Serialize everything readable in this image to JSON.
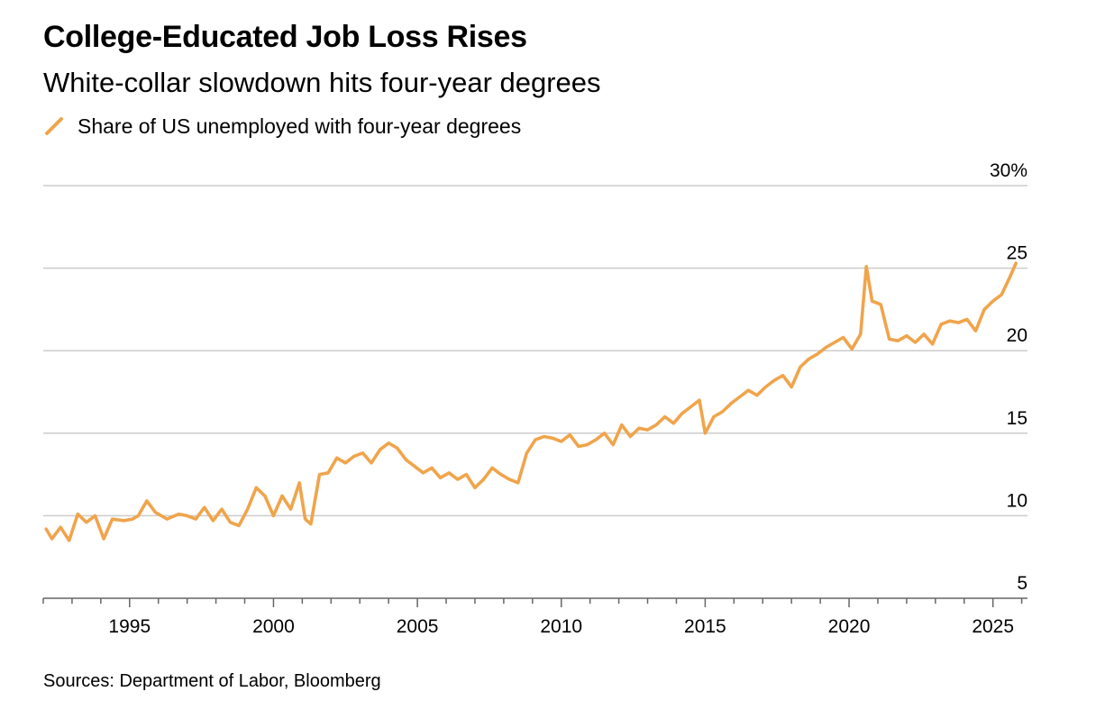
{
  "header": {
    "title": "College-Educated Job Loss Rises",
    "subtitle": "White-collar slowdown hits four-year degrees"
  },
  "footer": {
    "source": "Sources: Department of Labor, Bloomberg"
  },
  "colors": {
    "series": "#F0A44B",
    "grid": "#cccccc",
    "axis": "#666666",
    "text": "#000000"
  },
  "chart_data": {
    "type": "line",
    "title": "College-Educated Job Loss Rises",
    "subtitle": "White-collar slowdown hits four-year degrees",
    "xlabel": "",
    "ylabel": "",
    "xlim": [
      1992.0,
      2026.2
    ],
    "ylim": [
      5,
      30
    ],
    "y_ticks": [
      5,
      10,
      15,
      20,
      25,
      30
    ],
    "y_tick_labels": [
      "5",
      "10",
      "15",
      "20",
      "25",
      "30%"
    ],
    "x_ticks": [
      1995,
      2000,
      2005,
      2010,
      2015,
      2020,
      2025
    ],
    "x_tick_labels": [
      "1995",
      "2000",
      "2005",
      "2010",
      "2015",
      "2020",
      "2025"
    ],
    "grid": "horizontal",
    "legend_position": "top-left",
    "series": [
      {
        "name": "Share of US unemployed with four-year degrees",
        "color": "#F0A44B",
        "x": [
          1992.1,
          1992.3,
          1992.6,
          1992.9,
          1993.2,
          1993.5,
          1993.8,
          1994.1,
          1994.4,
          1994.8,
          1995.1,
          1995.3,
          1995.6,
          1995.9,
          1996.3,
          1996.7,
          1997.0,
          1997.3,
          1997.6,
          1997.9,
          1998.2,
          1998.5,
          1998.8,
          1999.1,
          1999.4,
          1999.7,
          2000.0,
          2000.3,
          2000.6,
          2000.9,
          2001.1,
          2001.3,
          2001.6,
          2001.9,
          2002.2,
          2002.5,
          2002.8,
          2003.1,
          2003.4,
          2003.7,
          2004.0,
          2004.3,
          2004.6,
          2004.9,
          2005.2,
          2005.5,
          2005.8,
          2006.1,
          2006.4,
          2006.7,
          2007.0,
          2007.3,
          2007.6,
          2007.9,
          2008.2,
          2008.5,
          2008.8,
          2009.1,
          2009.4,
          2009.7,
          2010.0,
          2010.3,
          2010.6,
          2010.9,
          2011.2,
          2011.5,
          2011.8,
          2012.1,
          2012.4,
          2012.7,
          2013.0,
          2013.3,
          2013.6,
          2013.9,
          2014.2,
          2014.5,
          2014.8,
          2015.0,
          2015.3,
          2015.6,
          2015.9,
          2016.2,
          2016.5,
          2016.8,
          2017.1,
          2017.4,
          2017.7,
          2018.0,
          2018.3,
          2018.6,
          2018.9,
          2019.2,
          2019.5,
          2019.8,
          2020.1,
          2020.4,
          2020.6,
          2020.8,
          2021.1,
          2021.4,
          2021.7,
          2022.0,
          2022.3,
          2022.6,
          2022.9,
          2023.2,
          2023.5,
          2023.8,
          2024.1,
          2024.4,
          2024.7,
          2025.0,
          2025.3,
          2025.6,
          2025.8
        ],
        "values": [
          9.2,
          8.6,
          9.3,
          8.5,
          10.1,
          9.6,
          10.0,
          8.6,
          9.8,
          9.7,
          9.8,
          10.0,
          10.9,
          10.2,
          9.8,
          10.1,
          10.0,
          9.8,
          10.5,
          9.7,
          10.4,
          9.6,
          9.4,
          10.4,
          11.7,
          11.2,
          10.0,
          11.2,
          10.4,
          12.0,
          9.8,
          9.5,
          12.5,
          12.6,
          13.5,
          13.2,
          13.6,
          13.8,
          13.2,
          14.0,
          14.4,
          14.1,
          13.4,
          13.0,
          12.6,
          12.9,
          12.3,
          12.6,
          12.2,
          12.5,
          11.7,
          12.2,
          12.9,
          12.5,
          12.2,
          12.0,
          13.8,
          14.6,
          14.8,
          14.7,
          14.5,
          14.9,
          14.2,
          14.3,
          14.6,
          15.0,
          14.3,
          15.5,
          14.8,
          15.3,
          15.2,
          15.5,
          16.0,
          15.6,
          16.2,
          16.6,
          17.0,
          15.0,
          16.0,
          16.3,
          16.8,
          17.2,
          17.6,
          17.3,
          17.8,
          18.2,
          18.5,
          17.8,
          19.0,
          19.5,
          19.8,
          20.2,
          20.5,
          20.8,
          20.1,
          21.0,
          25.1,
          23.0,
          22.8,
          20.7,
          20.6,
          20.9,
          20.5,
          21.0,
          20.4,
          21.6,
          21.8,
          21.7,
          21.9,
          21.2,
          22.5,
          23.0,
          23.4,
          24.5,
          25.3
        ]
      }
    ]
  }
}
